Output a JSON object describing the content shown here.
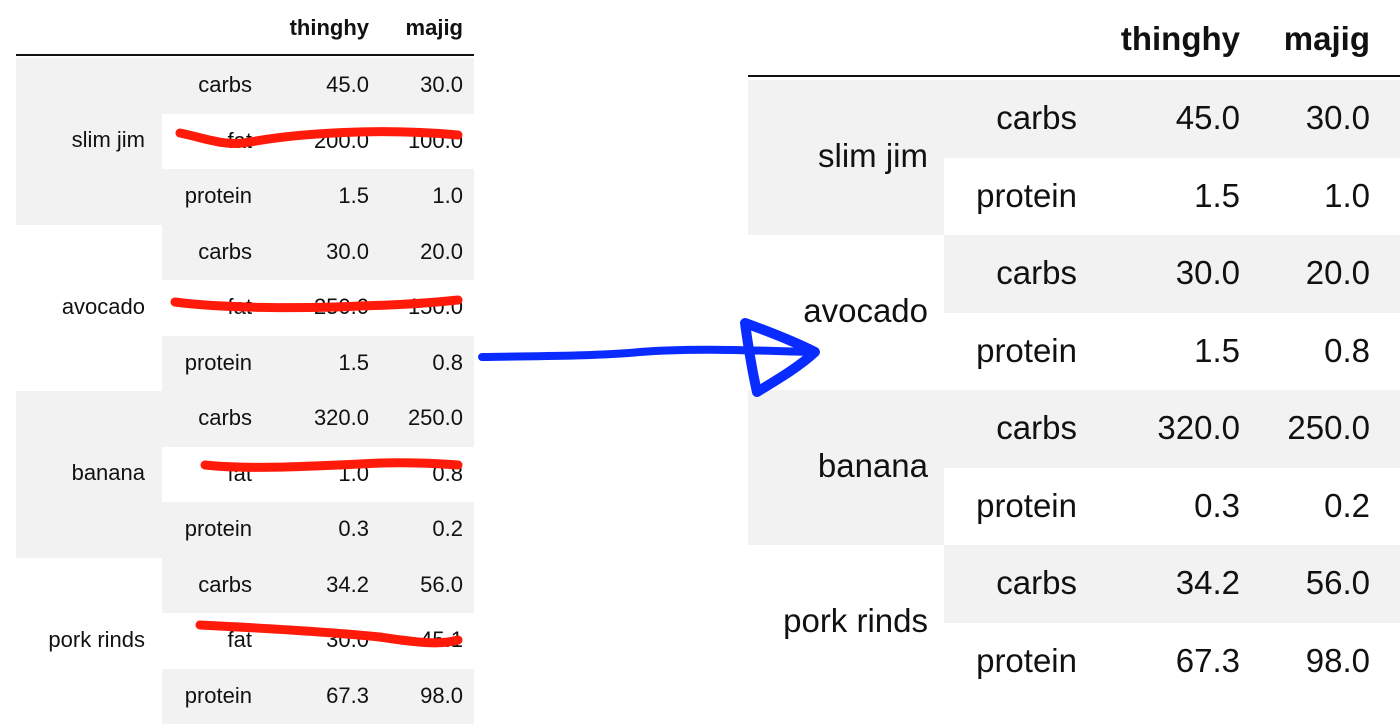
{
  "left_table": {
    "columns": [
      "thinghy",
      "majig"
    ],
    "groups": [
      {
        "name": "slim jim",
        "rows": [
          {
            "nutrient": "carbs",
            "thinghy": "45.0",
            "majig": "30.0"
          },
          {
            "nutrient": "fat",
            "thinghy": "200.0",
            "majig": "100.0",
            "struck": true
          },
          {
            "nutrient": "protein",
            "thinghy": "1.5",
            "majig": "1.0"
          }
        ]
      },
      {
        "name": "avocado",
        "rows": [
          {
            "nutrient": "carbs",
            "thinghy": "30.0",
            "majig": "20.0"
          },
          {
            "nutrient": "fat",
            "thinghy": "250.0",
            "majig": "150.0",
            "struck": true
          },
          {
            "nutrient": "protein",
            "thinghy": "1.5",
            "majig": "0.8"
          }
        ]
      },
      {
        "name": "banana",
        "rows": [
          {
            "nutrient": "carbs",
            "thinghy": "320.0",
            "majig": "250.0"
          },
          {
            "nutrient": "fat",
            "thinghy": "1.0",
            "majig": "0.8",
            "struck": true
          },
          {
            "nutrient": "protein",
            "thinghy": "0.3",
            "majig": "0.2"
          }
        ]
      },
      {
        "name": "pork rinds",
        "rows": [
          {
            "nutrient": "carbs",
            "thinghy": "34.2",
            "majig": "56.0"
          },
          {
            "nutrient": "fat",
            "thinghy": "30.0",
            "majig": "45.1",
            "struck": true
          },
          {
            "nutrient": "protein",
            "thinghy": "67.3",
            "majig": "98.0"
          }
        ]
      }
    ]
  },
  "right_table": {
    "columns": [
      "thinghy",
      "majig"
    ],
    "groups": [
      {
        "name": "slim jim",
        "rows": [
          {
            "nutrient": "carbs",
            "thinghy": "45.0",
            "majig": "30.0"
          },
          {
            "nutrient": "protein",
            "thinghy": "1.5",
            "majig": "1.0"
          }
        ]
      },
      {
        "name": "avocado",
        "rows": [
          {
            "nutrient": "carbs",
            "thinghy": "30.0",
            "majig": "20.0"
          },
          {
            "nutrient": "protein",
            "thinghy": "1.5",
            "majig": "0.8"
          }
        ]
      },
      {
        "name": "banana",
        "rows": [
          {
            "nutrient": "carbs",
            "thinghy": "320.0",
            "majig": "250.0"
          },
          {
            "nutrient": "protein",
            "thinghy": "0.3",
            "majig": "0.2"
          }
        ]
      },
      {
        "name": "pork rinds",
        "rows": [
          {
            "nutrient": "carbs",
            "thinghy": "34.2",
            "majig": "56.0"
          },
          {
            "nutrient": "protein",
            "thinghy": "67.3",
            "majig": "98.0"
          }
        ]
      }
    ]
  },
  "colors": {
    "strike": "#ff1a0a",
    "arrow": "#0a2bff",
    "shade": "#f2f2f2"
  }
}
